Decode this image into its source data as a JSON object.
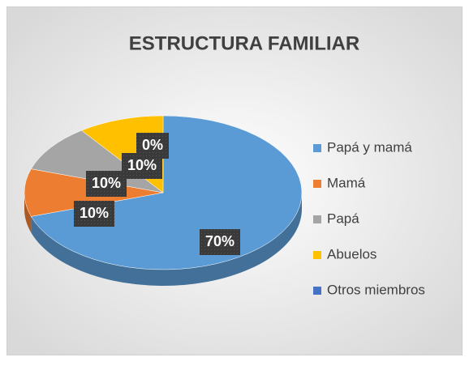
{
  "chart_data": {
    "type": "pie3d",
    "title": "ESTRUCTURA FAMILIAR",
    "categories": [
      "Papá y mamá",
      "Mamá",
      "Papá",
      "Abuelos",
      "Otros miembros"
    ],
    "values": [
      70,
      10,
      10,
      10,
      0
    ],
    "value_labels": [
      "70%",
      "10%",
      "10%",
      "10%",
      "0%"
    ],
    "colors": [
      "#5b9bd5",
      "#ed7d31",
      "#a5a5a5",
      "#ffc000",
      "#4472c4"
    ],
    "legend": "right"
  }
}
